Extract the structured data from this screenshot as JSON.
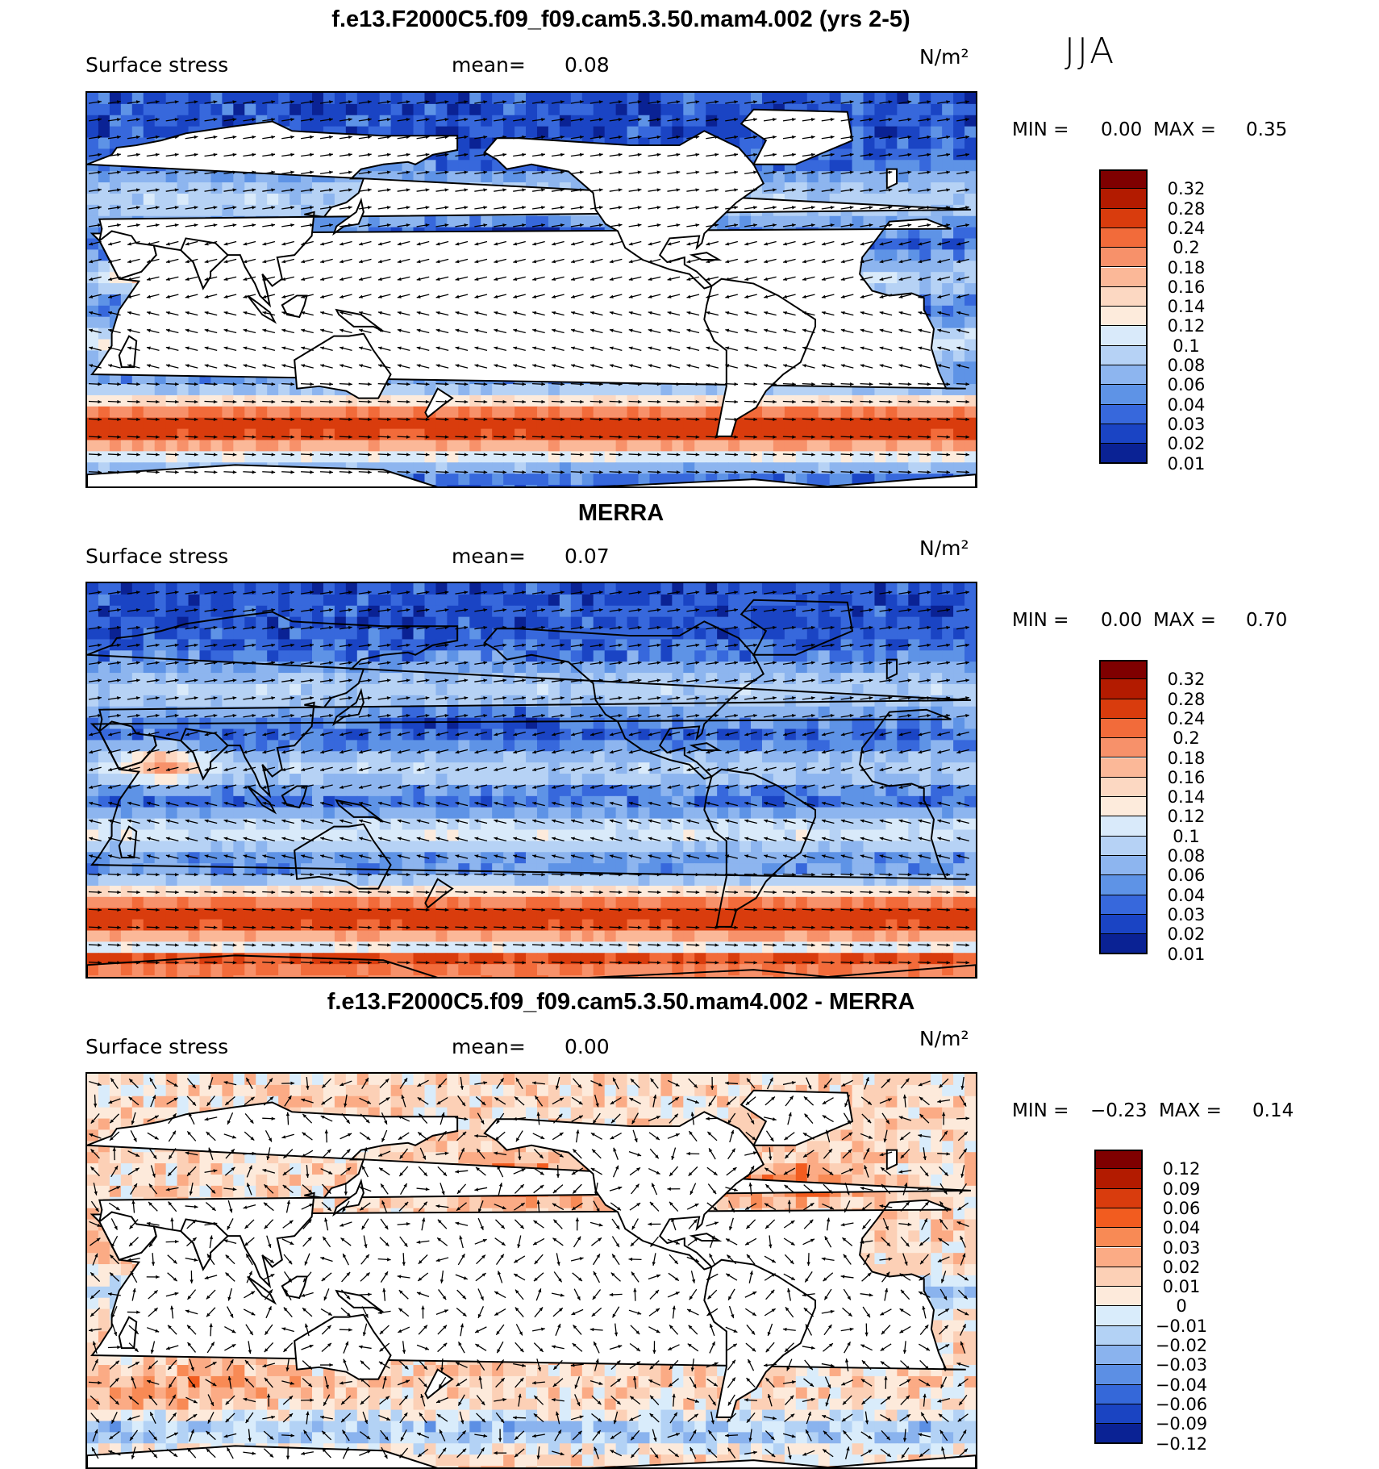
{
  "season": "JJA",
  "panels": [
    {
      "title": "f.e13.F2000C5.f09_f09.cam5.3.50.mam4.002 (yrs 2-5)",
      "variable": "Surface stress",
      "mean_label": "mean=",
      "mean_value": "0.08",
      "units": "N/m²",
      "min_label": "MIN =",
      "min_value": "0.00",
      "max_label": "MAX =",
      "max_value": "0.35",
      "colorbar": [
        "0.32",
        "0.28",
        "0.24",
        "0.2",
        "0.18",
        "0.16",
        "0.14",
        "0.12",
        "0.1",
        "0.08",
        "0.06",
        "0.04",
        "0.03",
        "0.02",
        "0.01"
      ]
    },
    {
      "title": "MERRA",
      "variable": "Surface stress",
      "mean_label": "mean=",
      "mean_value": "0.07",
      "units": "N/m²",
      "min_label": "MIN =",
      "min_value": "0.00",
      "max_label": "MAX =",
      "max_value": "0.70",
      "colorbar": [
        "0.32",
        "0.28",
        "0.24",
        "0.2",
        "0.18",
        "0.16",
        "0.14",
        "0.12",
        "0.1",
        "0.08",
        "0.06",
        "0.04",
        "0.03",
        "0.02",
        "0.01"
      ]
    },
    {
      "title": "f.e13.F2000C5.f09_f09.cam5.3.50.mam4.002 - MERRA",
      "variable": "Surface stress",
      "mean_label": "mean=",
      "mean_value": "0.00",
      "units": "N/m²",
      "min_label": "MIN =",
      "min_value": "−0.23",
      "max_label": "MAX =",
      "max_value": "0.14",
      "colorbar": [
        "0.12",
        "0.09",
        "0.06",
        "0.04",
        "0.03",
        "0.02",
        "0.01",
        "0",
        "−0.01",
        "−0.02",
        "−0.03",
        "−0.04",
        "−0.06",
        "−0.09",
        "−0.12"
      ]
    }
  ],
  "colors": {
    "seq": [
      "#7f0000",
      "#b31b00",
      "#d93c0d",
      "#f26b3a",
      "#f7916a",
      "#fbb898",
      "#fcd8c2",
      "#fdebdc",
      "#d9eafa",
      "#b6d2f5",
      "#8db5ef",
      "#5e93e6",
      "#3768dc",
      "#1a44c4",
      "#0a2294"
    ],
    "diff": [
      "#7f0000",
      "#b31b00",
      "#d93c0d",
      "#f25c1f",
      "#f88a55",
      "#fbab85",
      "#fcd0b6",
      "#fdeadb",
      "#d9ecfb",
      "#b3d2f5",
      "#8ab3ee",
      "#5c8fe4",
      "#3568d9",
      "#1a44c2",
      "#0a2294"
    ],
    "land": "#ffffff"
  },
  "chart_data": [
    {
      "type": "heatmap",
      "title": "f.e13.F2000C5.f09_f09.cam5.3.50.mam4.002 (yrs 2-5)",
      "field": "Surface stress",
      "units": "N/m^2",
      "mean": 0.08,
      "min": 0.0,
      "max": 0.35,
      "levels": [
        0.01,
        0.02,
        0.03,
        0.04,
        0.06,
        0.08,
        0.1,
        0.12,
        0.14,
        0.16,
        0.18,
        0.2,
        0.24,
        0.28,
        0.32
      ]
    },
    {
      "type": "heatmap",
      "title": "MERRA",
      "field": "Surface stress",
      "units": "N/m^2",
      "mean": 0.07,
      "min": 0.0,
      "max": 0.7,
      "levels": [
        0.01,
        0.02,
        0.03,
        0.04,
        0.06,
        0.08,
        0.1,
        0.12,
        0.14,
        0.16,
        0.18,
        0.2,
        0.24,
        0.28,
        0.32
      ]
    },
    {
      "type": "heatmap",
      "title": "f.e13.F2000C5.f09_f09.cam5.3.50.mam4.002 - MERRA",
      "field": "Surface stress",
      "units": "N/m^2",
      "mean": 0.0,
      "min": -0.23,
      "max": 0.14,
      "levels": [
        -0.12,
        -0.09,
        -0.06,
        -0.04,
        -0.03,
        -0.02,
        -0.01,
        0,
        0.01,
        0.02,
        0.03,
        0.04,
        0.06,
        0.09,
        0.12
      ]
    }
  ]
}
